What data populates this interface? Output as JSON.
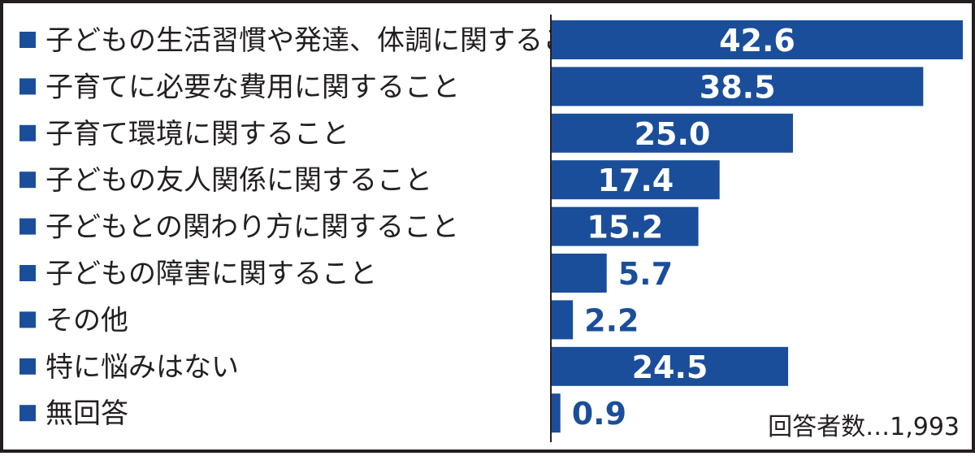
{
  "chart_data": {
    "type": "bar",
    "orientation": "horizontal",
    "categories": [
      "子どもの生活習慣や発達、体調に関すること",
      "子育てに必要な費用に関すること",
      "子育て環境に関すること",
      "子どもの友人関係に関すること",
      "子どもとの関わり方に関すること",
      "子どもの障害に関すること",
      "その他",
      "特に悩みはない",
      "無回答"
    ],
    "values": [
      42.6,
      38.5,
      25.0,
      17.4,
      15.2,
      5.7,
      2.2,
      24.5,
      0.9
    ],
    "value_labels": [
      "42.6",
      "38.5",
      "25.0",
      "17.4",
      "15.2",
      "5.7",
      "2.2",
      "24.5",
      "0.9"
    ],
    "bullet": "■",
    "xlim": [
      0,
      42.6
    ],
    "grid": false,
    "legend": "none",
    "bar_color": "#1a4e9a",
    "note": "回答者数…1,993"
  },
  "colors": {
    "bar": "#1a4e9a",
    "text": "#231f20",
    "label_inside": "#ffffff",
    "label_outside": "#1a4e9a",
    "bullet": "#1a4e9a"
  }
}
